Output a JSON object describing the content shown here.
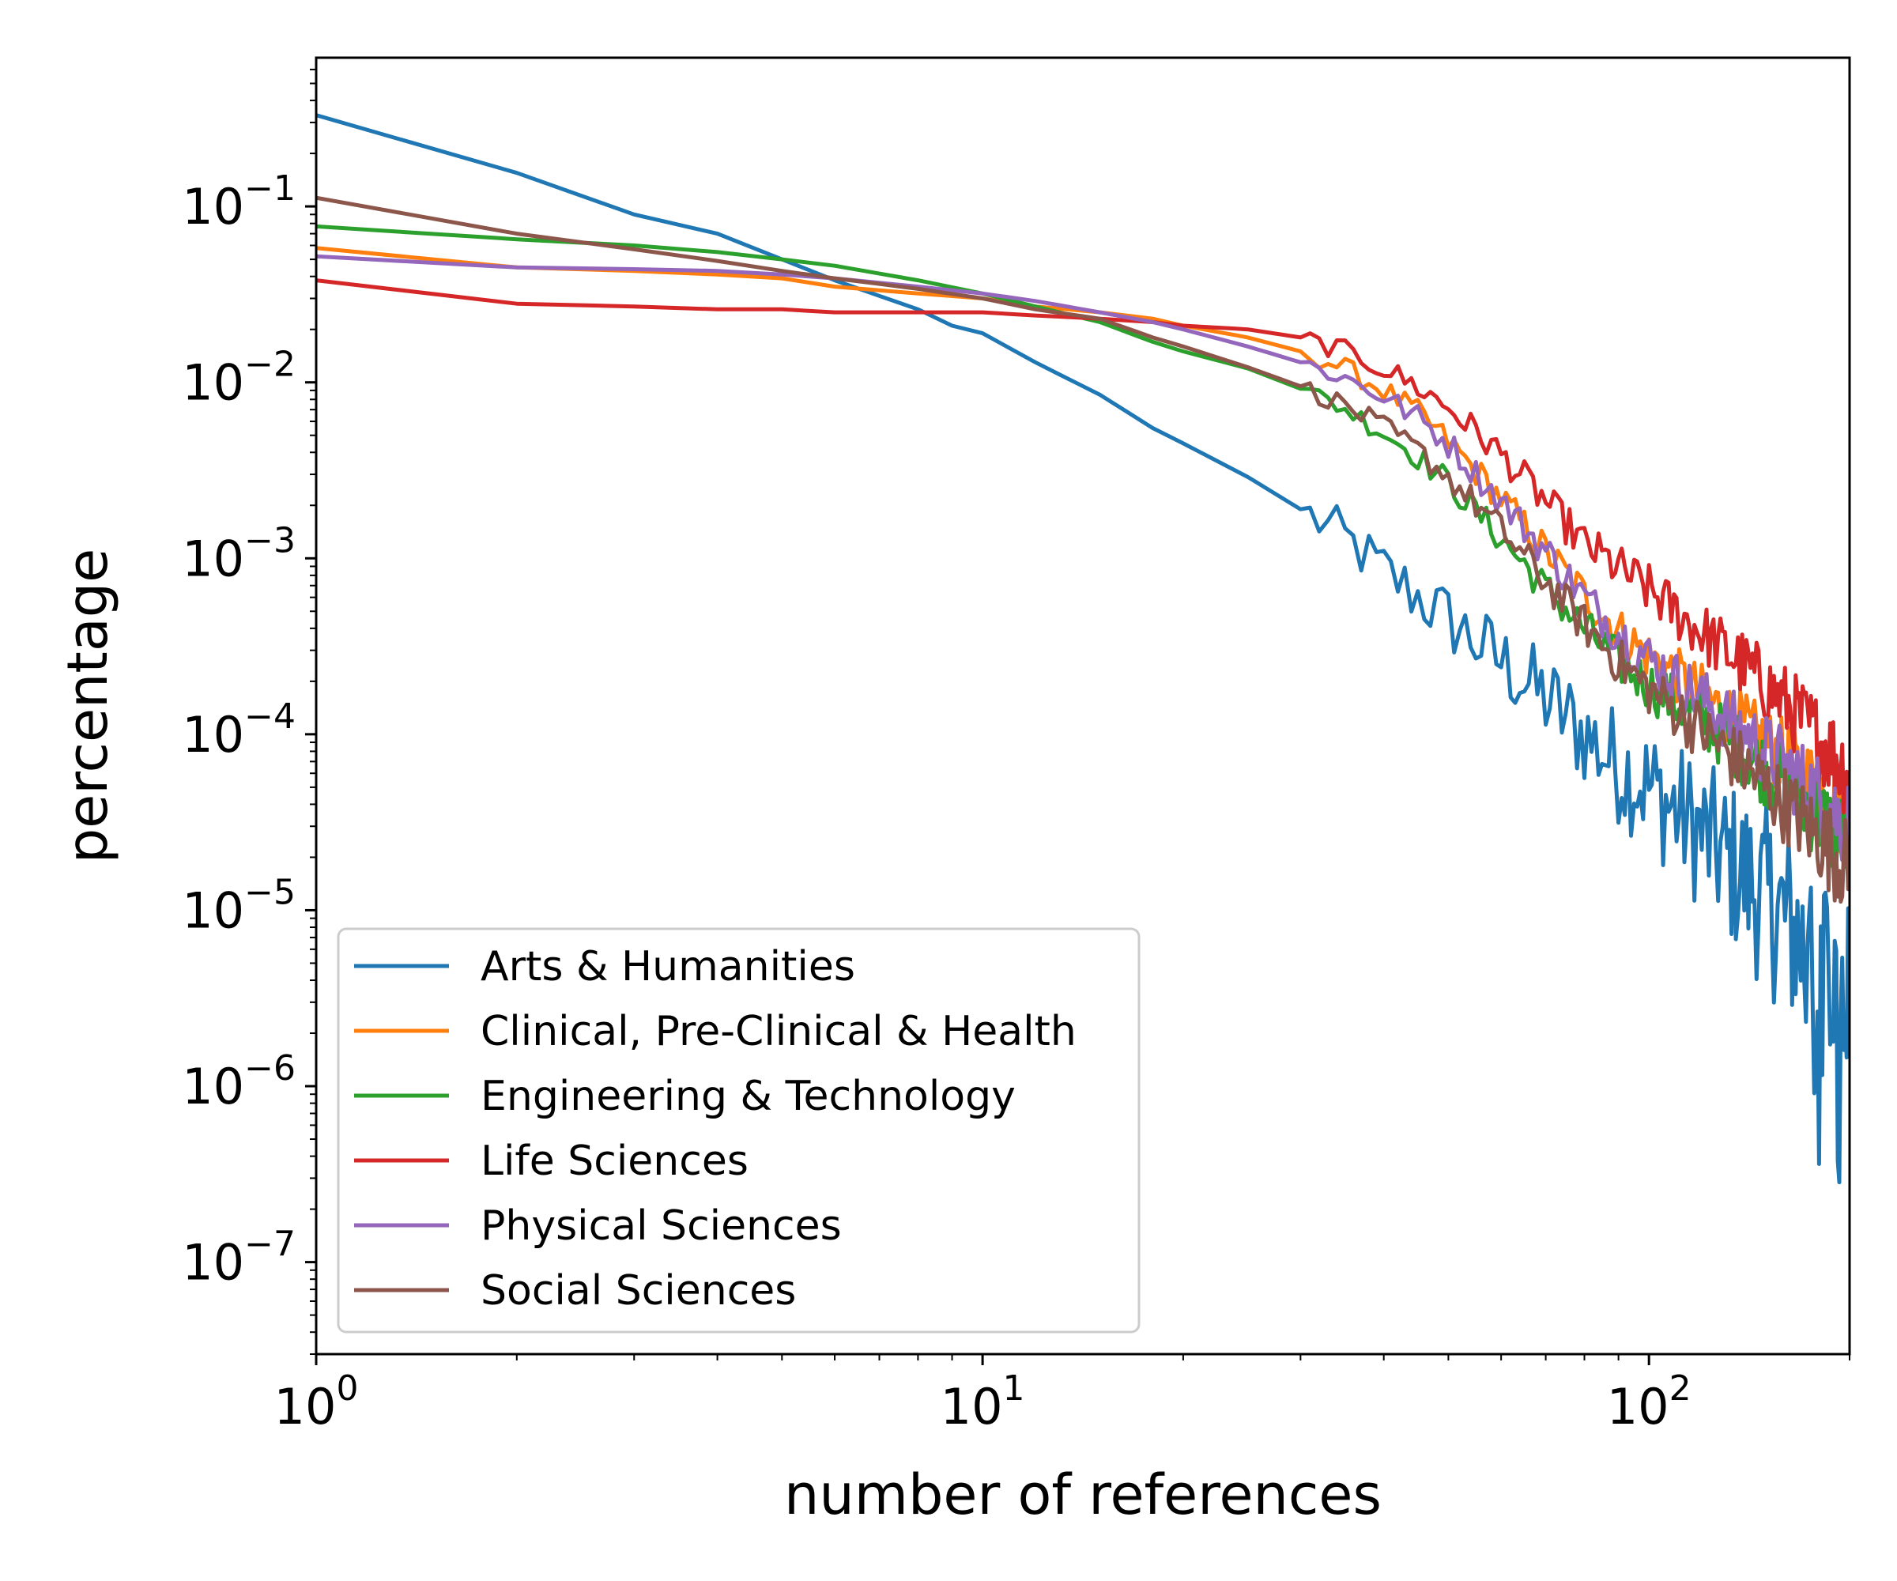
{
  "chart_data": {
    "type": "line",
    "title": "",
    "xlabel": "number of references",
    "ylabel": "percentage",
    "xscale": "log",
    "yscale": "log",
    "xlim": [
      1,
      200
    ],
    "ylim": [
      3e-08,
      0.7
    ],
    "x_ticks": [
      {
        "base": "10",
        "exp": "0",
        "value": 1
      },
      {
        "base": "10",
        "exp": "1",
        "value": 10
      },
      {
        "base": "10",
        "exp": "2",
        "value": 100
      }
    ],
    "y_ticks": [
      {
        "base": "10",
        "exp": "−1",
        "value": 0.1
      },
      {
        "base": "10",
        "exp": "−2",
        "value": 0.01
      },
      {
        "base": "10",
        "exp": "−3",
        "value": 0.001
      },
      {
        "base": "10",
        "exp": "−4",
        "value": 0.0001
      },
      {
        "base": "10",
        "exp": "−5",
        "value": 1e-05
      },
      {
        "base": "10",
        "exp": "−6",
        "value": 1e-06
      },
      {
        "base": "10",
        "exp": "−7",
        "value": 1e-07
      }
    ],
    "grid": false,
    "legend_position": "lower-left",
    "series": [
      {
        "name": "Arts & Humanities",
        "color": "#1f77b4",
        "points": [
          [
            1,
            0.33
          ],
          [
            2,
            0.155
          ],
          [
            3,
            0.09
          ],
          [
            4,
            0.07
          ],
          [
            5,
            0.05
          ],
          [
            6,
            0.038
          ],
          [
            7,
            0.031
          ],
          [
            8,
            0.026
          ],
          [
            9,
            0.021
          ],
          [
            10,
            0.019
          ],
          [
            12,
            0.013
          ],
          [
            15,
            0.0085
          ],
          [
            18,
            0.0055
          ],
          [
            20,
            0.0045
          ],
          [
            25,
            0.0029
          ],
          [
            30,
            0.0019
          ],
          [
            35,
            0.0013
          ],
          [
            40,
            0.00085
          ],
          [
            50,
            0.00045
          ],
          [
            60,
            0.00026
          ],
          [
            70,
            0.00016
          ],
          [
            80,
            0.0001
          ],
          [
            90,
            6.6e-05
          ],
          [
            100,
            5e-05
          ],
          [
            120,
            2.7e-05
          ],
          [
            140,
            1.5e-05
          ],
          [
            160,
            9e-06
          ],
          [
            180,
            4.5e-06
          ],
          [
            200,
            2.5e-06
          ]
        ]
      },
      {
        "name": "Clinical, Pre-Clinical & Health",
        "color": "#ff7f0e",
        "points": [
          [
            1,
            0.058
          ],
          [
            2,
            0.045
          ],
          [
            3,
            0.043
          ],
          [
            4,
            0.041
          ],
          [
            5,
            0.039
          ],
          [
            6,
            0.035
          ],
          [
            8,
            0.032
          ],
          [
            10,
            0.03
          ],
          [
            12,
            0.027
          ],
          [
            15,
            0.025
          ],
          [
            18,
            0.023
          ],
          [
            20,
            0.021
          ],
          [
            25,
            0.018
          ],
          [
            30,
            0.015
          ],
          [
            35,
            0.012
          ],
          [
            40,
            0.009
          ],
          [
            45,
            0.0067
          ],
          [
            50,
            0.0046
          ],
          [
            60,
            0.0022
          ],
          [
            70,
            0.0011
          ],
          [
            80,
            0.00062
          ],
          [
            90,
            0.00039
          ],
          [
            100,
            0.00028
          ],
          [
            120,
            0.00017
          ],
          [
            140,
            0.000107
          ],
          [
            160,
            7.2e-05
          ],
          [
            180,
            4.8e-05
          ],
          [
            200,
            3.4e-05
          ]
        ]
      },
      {
        "name": "Engineering & Technology",
        "color": "#2ca02c",
        "points": [
          [
            1,
            0.077
          ],
          [
            2,
            0.065
          ],
          [
            3,
            0.06
          ],
          [
            4,
            0.055
          ],
          [
            5,
            0.05
          ],
          [
            6,
            0.046
          ],
          [
            8,
            0.038
          ],
          [
            10,
            0.032
          ],
          [
            12,
            0.027
          ],
          [
            15,
            0.022
          ],
          [
            18,
            0.017
          ],
          [
            20,
            0.015
          ],
          [
            25,
            0.012
          ],
          [
            30,
            0.0092
          ],
          [
            35,
            0.0071
          ],
          [
            40,
            0.0052
          ],
          [
            45,
            0.0038
          ],
          [
            50,
            0.0027
          ],
          [
            60,
            0.0013
          ],
          [
            70,
            0.00067
          ],
          [
            80,
            0.0004
          ],
          [
            90,
            0.00026
          ],
          [
            100,
            0.00019
          ],
          [
            120,
            0.00012
          ],
          [
            140,
            7.8e-05
          ],
          [
            160,
            5.1e-05
          ],
          [
            180,
            3.4e-05
          ],
          [
            200,
            2.3e-05
          ]
        ]
      },
      {
        "name": "Life Sciences",
        "color": "#d62728",
        "points": [
          [
            1,
            0.038
          ],
          [
            2,
            0.028
          ],
          [
            3,
            0.027
          ],
          [
            4,
            0.026
          ],
          [
            5,
            0.026
          ],
          [
            6,
            0.025
          ],
          [
            8,
            0.025
          ],
          [
            10,
            0.025
          ],
          [
            12,
            0.024
          ],
          [
            15,
            0.023
          ],
          [
            18,
            0.022
          ],
          [
            20,
            0.021
          ],
          [
            25,
            0.02
          ],
          [
            30,
            0.018
          ],
          [
            35,
            0.015
          ],
          [
            40,
            0.012
          ],
          [
            45,
            0.0094
          ],
          [
            50,
            0.0072
          ],
          [
            60,
            0.0039
          ],
          [
            70,
            0.0021
          ],
          [
            80,
            0.0012
          ],
          [
            90,
            0.00088
          ],
          [
            100,
            0.00066
          ],
          [
            120,
            0.00038
          ],
          [
            140,
            0.00024
          ],
          [
            160,
            0.00015
          ],
          [
            180,
            9.5e-05
          ],
          [
            200,
            6e-05
          ]
        ]
      },
      {
        "name": "Physical Sciences",
        "color": "#9467bd",
        "points": [
          [
            1,
            0.052
          ],
          [
            2,
            0.045
          ],
          [
            3,
            0.044
          ],
          [
            4,
            0.043
          ],
          [
            5,
            0.041
          ],
          [
            6,
            0.039
          ],
          [
            8,
            0.035
          ],
          [
            10,
            0.032
          ],
          [
            12,
            0.029
          ],
          [
            15,
            0.025
          ],
          [
            18,
            0.022
          ],
          [
            20,
            0.02
          ],
          [
            25,
            0.016
          ],
          [
            30,
            0.013
          ],
          [
            35,
            0.0106
          ],
          [
            40,
            0.0083
          ],
          [
            45,
            0.0063
          ],
          [
            50,
            0.0045
          ],
          [
            60,
            0.0021
          ],
          [
            70,
            0.0011
          ],
          [
            80,
            0.0006
          ],
          [
            90,
            0.00038
          ],
          [
            100,
            0.00027
          ],
          [
            120,
            0.00016
          ],
          [
            140,
            0.0001
          ],
          [
            160,
            6.6e-05
          ],
          [
            180,
            4.4e-05
          ],
          [
            200,
            3e-05
          ]
        ]
      },
      {
        "name": "Social Sciences",
        "color": "#8c564b",
        "points": [
          [
            1,
            0.112
          ],
          [
            2,
            0.07
          ],
          [
            3,
            0.057
          ],
          [
            4,
            0.049
          ],
          [
            5,
            0.043
          ],
          [
            6,
            0.039
          ],
          [
            8,
            0.034
          ],
          [
            10,
            0.03
          ],
          [
            12,
            0.026
          ],
          [
            15,
            0.023
          ],
          [
            18,
            0.018
          ],
          [
            20,
            0.016
          ],
          [
            25,
            0.0122
          ],
          [
            30,
            0.0095
          ],
          [
            35,
            0.0074
          ],
          [
            40,
            0.0055
          ],
          [
            45,
            0.0041
          ],
          [
            50,
            0.0029
          ],
          [
            60,
            0.00145
          ],
          [
            70,
            0.00074
          ],
          [
            80,
            0.00042
          ],
          [
            90,
            0.00026
          ],
          [
            100,
            0.00018
          ],
          [
            120,
            0.000105
          ],
          [
            140,
            6.4e-05
          ],
          [
            160,
            4e-05
          ],
          [
            180,
            2.6e-05
          ],
          [
            200,
            1.7e-05
          ]
        ]
      }
    ]
  }
}
